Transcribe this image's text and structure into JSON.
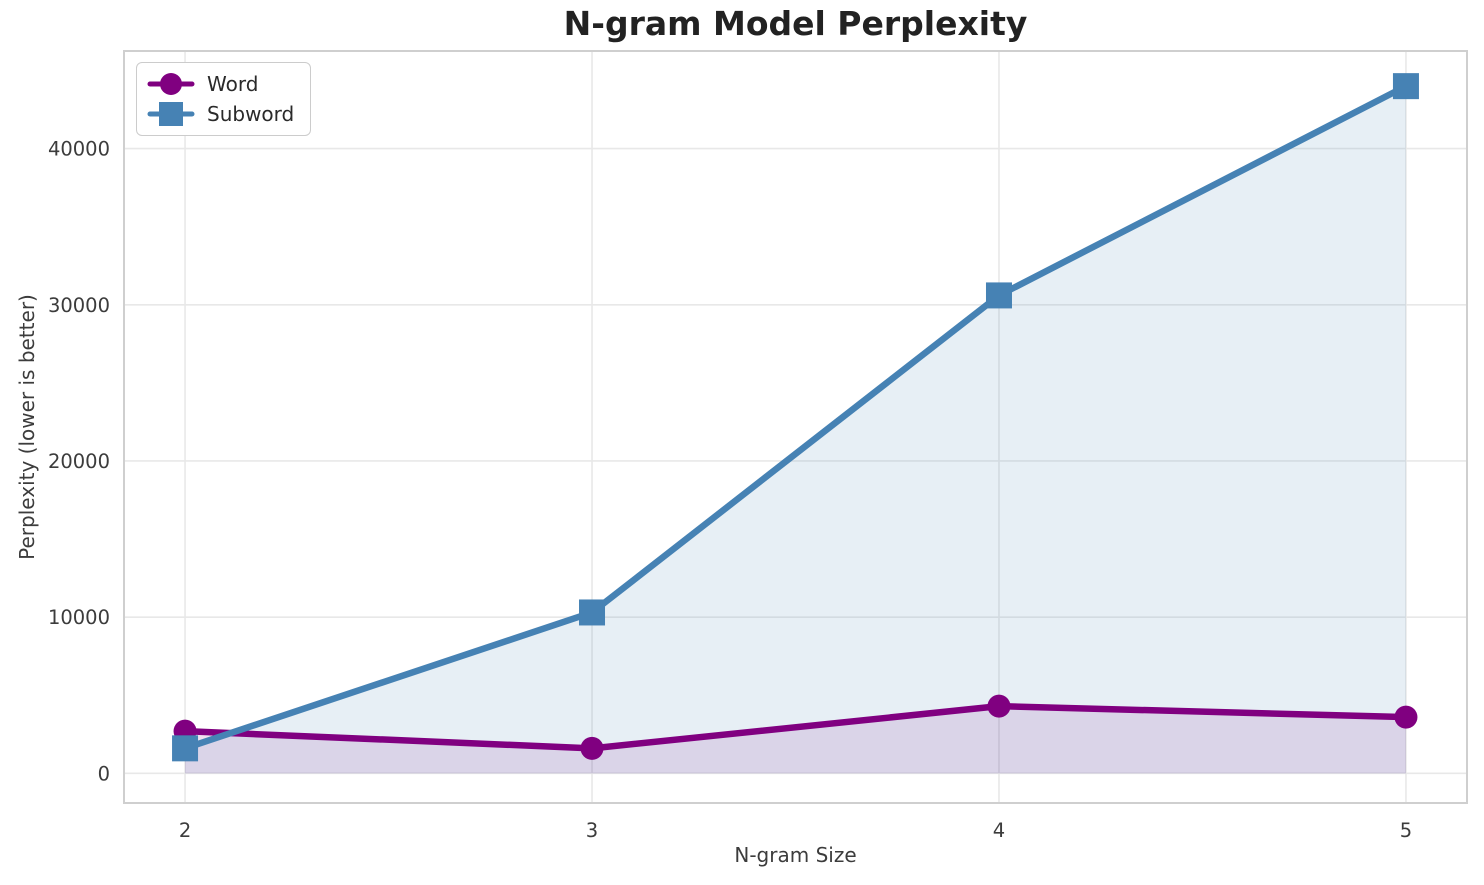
{
  "chart_data": {
    "type": "line",
    "title": "N-gram Model Perplexity",
    "xlabel": "N-gram Size",
    "ylabel": "Perplexity (lower is better)",
    "x": [
      2,
      3,
      4,
      5
    ],
    "series": [
      {
        "name": "Word",
        "color": "#800080",
        "marker": "circle",
        "values": [
          2700,
          1600,
          4300,
          3600
        ],
        "fill_to_zero": true,
        "fill_alpha": 0.12
      },
      {
        "name": "Subword",
        "color": "#4682b4",
        "marker": "square",
        "values": [
          1600,
          10300,
          30600,
          44000
        ],
        "fill_to_zero": true,
        "fill_alpha": 0.13
      }
    ],
    "xticks": [
      2,
      3,
      4,
      5
    ],
    "yticks": [
      0,
      10000,
      20000,
      30000,
      40000
    ],
    "xlim": [
      1.85,
      5.15
    ],
    "ylim": [
      -1900,
      46250
    ],
    "grid": true,
    "legend_position": "upper left",
    "style": {
      "grid_color": "#e8e8e8",
      "spine_color": "#cfcfcf",
      "tick_color": "#3c3c3c",
      "title_color": "#222222",
      "line_width": 6.5
    }
  }
}
